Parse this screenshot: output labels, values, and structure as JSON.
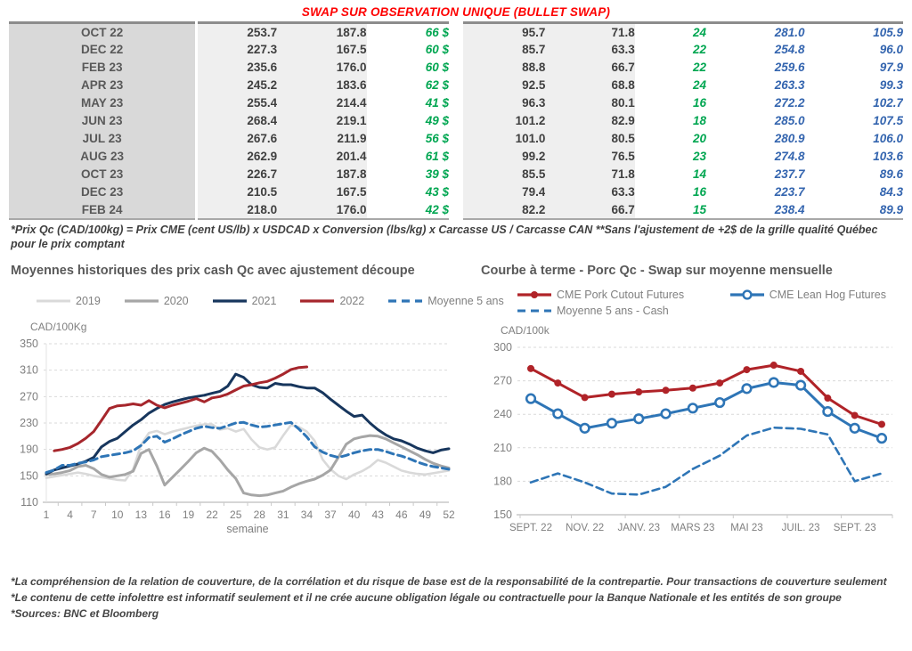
{
  "colors": {
    "title_red": "#fe0000",
    "green": "#00a651",
    "blue_italic": "#3465af",
    "month_bg": "#d9d9d9",
    "cell_bg": "#efefef",
    "series_2019": "#d9d9d9",
    "series_2020": "#a6a6a6",
    "series_2021": "#17365d",
    "series_2022": "#a6262c",
    "series_moyenne": "#2e75b6"
  },
  "table": {
    "title": "SWAP SUR OBSERVATION UNIQUE (BULLET SWAP)",
    "rows": [
      [
        "OCT 22",
        "253.7",
        "187.8",
        "66 $",
        "95.7",
        "71.8",
        "24",
        "281.0",
        "105.9"
      ],
      [
        "DEC 22",
        "227.3",
        "167.5",
        "60 $",
        "85.7",
        "63.3",
        "22",
        "254.8",
        "96.0"
      ],
      [
        "FEB 23",
        "235.6",
        "176.0",
        "60 $",
        "88.8",
        "66.7",
        "22",
        "259.6",
        "97.9"
      ],
      [
        "APR 23",
        "245.2",
        "183.6",
        "62 $",
        "92.5",
        "68.8",
        "24",
        "263.3",
        "99.3"
      ],
      [
        "MAY 23",
        "255.4",
        "214.4",
        "41 $",
        "96.3",
        "80.1",
        "16",
        "272.2",
        "102.7"
      ],
      [
        "JUN 23",
        "268.4",
        "219.1",
        "49 $",
        "101.2",
        "82.9",
        "18",
        "285.0",
        "107.5"
      ],
      [
        "JUL 23",
        "267.6",
        "211.9",
        "56 $",
        "101.0",
        "80.5",
        "20",
        "280.9",
        "106.0"
      ],
      [
        "AUG 23",
        "262.9",
        "201.4",
        "61 $",
        "99.2",
        "76.5",
        "23",
        "274.8",
        "103.6"
      ],
      [
        "OCT 23",
        "226.7",
        "187.8",
        "39 $",
        "85.5",
        "71.8",
        "14",
        "237.7",
        "89.6"
      ],
      [
        "DEC 23",
        "210.5",
        "167.5",
        "43 $",
        "79.4",
        "63.3",
        "16",
        "223.7",
        "84.3"
      ],
      [
        "FEB 24",
        "218.0",
        "176.0",
        "42 $",
        "82.2",
        "66.7",
        "15",
        "238.4",
        "89.9"
      ]
    ],
    "footnote": "*Prix Qc (CAD/100kg) = Prix CME (cent US/lb) x USDCAD x Conversion (lbs/kg) x Carcasse US / Carcasse CAN **Sans l'ajustement de +2$ de la grille qualité Québec pour le prix comptant"
  },
  "chart_data": [
    {
      "type": "line",
      "title": "Moyennes historiques des prix cash Qc avec ajustement découpe",
      "unit_label": "CAD/100Kg",
      "xlabel": "semaine",
      "ylim": [
        110,
        350
      ],
      "yticks": [
        110,
        150,
        190,
        230,
        270,
        310,
        350
      ],
      "xticks": [
        1,
        4,
        7,
        10,
        13,
        16,
        19,
        22,
        25,
        28,
        31,
        34,
        37,
        40,
        43,
        46,
        49,
        52
      ],
      "x_range": [
        1,
        52
      ],
      "grid": "dashed",
      "legend_position": "top",
      "series": [
        {
          "name": "2019",
          "color": "#d9d9d9",
          "width": 2.6,
          "values": [
            147,
            149,
            151,
            153,
            155,
            153,
            150,
            148,
            146,
            144,
            143,
            160,
            197,
            215,
            218,
            213,
            217,
            220,
            223,
            226,
            228,
            228,
            220,
            222,
            217,
            221,
            205,
            193,
            190,
            193,
            211,
            227,
            224,
            217,
            203,
            175,
            160,
            150,
            145,
            152,
            157,
            164,
            174,
            170,
            164,
            158,
            155,
            153,
            152,
            154,
            156,
            158
          ]
        },
        {
          "name": "2020",
          "color": "#a6a6a6",
          "width": 3,
          "values": [
            152,
            153,
            155,
            158,
            164,
            166,
            161,
            152,
            148,
            150,
            152,
            157,
            184,
            190,
            165,
            136,
            148,
            160,
            172,
            185,
            192,
            187,
            174,
            159,
            146,
            124,
            121,
            120,
            121,
            124,
            127,
            133,
            138,
            142,
            145,
            151,
            159,
            178,
            198,
            206,
            209,
            211,
            210,
            206,
            200,
            194,
            188,
            182,
            175,
            169,
            165,
            162
          ]
        },
        {
          "name": "2021",
          "color": "#17365d",
          "width": 3,
          "values": [
            153,
            159,
            162,
            165,
            168,
            172,
            178,
            194,
            202,
            207,
            217,
            227,
            235,
            245,
            252,
            258,
            262,
            265,
            268,
            270,
            272,
            275,
            278,
            286,
            304,
            299,
            288,
            284,
            283,
            290,
            288,
            288,
            285,
            283,
            283,
            276,
            266,
            257,
            248,
            240,
            242,
            230,
            220,
            212,
            206,
            203,
            198,
            192,
            188,
            185,
            189,
            191
          ]
        },
        {
          "name": "2022",
          "color": "#a6262c",
          "width": 3,
          "values": [
            null,
            188,
            190,
            193,
            199,
            207,
            217,
            234,
            252,
            256,
            257,
            259,
            257,
            264,
            257,
            253,
            257,
            260,
            263,
            267,
            262,
            268,
            270,
            274,
            280,
            286,
            288,
            291,
            293,
            298,
            304,
            311,
            314,
            315,
            null,
            null,
            null,
            null,
            null,
            null,
            null,
            null,
            null,
            null,
            null,
            null,
            null,
            null,
            null,
            null,
            null,
            null
          ]
        },
        {
          "name": "Moyenne 5 ans",
          "color": "#2e75b6",
          "width": 3,
          "dash": "8 5",
          "values": [
            155,
            159,
            166,
            166,
            169,
            171,
            174,
            179,
            181,
            183,
            185,
            188,
            196,
            208,
            210,
            201,
            206,
            212,
            217,
            222,
            225,
            223,
            222,
            226,
            230,
            231,
            227,
            224,
            225,
            227,
            229,
            231,
            221,
            209,
            194,
            186,
            181,
            178,
            181,
            185,
            188,
            190,
            190,
            187,
            183,
            180,
            176,
            171,
            167,
            164,
            162,
            160
          ]
        }
      ]
    },
    {
      "type": "line",
      "title": "Courbe à terme - Porc Qc - Swap sur moyenne mensuelle",
      "unit_label": "CAD/100k",
      "ylim": [
        150,
        300
      ],
      "yticks": [
        150,
        180,
        210,
        240,
        270,
        300
      ],
      "x_tick_labels": [
        "SEPT. 22",
        "NOV. 22",
        "JANV. 23",
        "MARS 23",
        "MAI 23",
        "JUIL. 23",
        "SEPT. 23"
      ],
      "n_points": 14,
      "grid": "dashed",
      "legend_position": "top",
      "series": [
        {
          "name": "CME Pork Cutout Futures",
          "color": "#b02328",
          "width": 3,
          "marker": "filled",
          "values": [
            281,
            268,
            255,
            258,
            260,
            261.5,
            263.5,
            268,
            280,
            284,
            278.5,
            254.5,
            239,
            231
          ]
        },
        {
          "name": "CME Lean Hog Futures",
          "color": "#2e75b6",
          "width": 3,
          "marker": "open",
          "values": [
            254,
            240.5,
            227.5,
            232,
            236,
            240.5,
            245.5,
            250.5,
            263,
            268.5,
            266,
            242.5,
            227.5,
            218.5
          ]
        },
        {
          "name": "Moyenne 5 ans - Cash",
          "color": "#2e75b6",
          "width": 2.6,
          "dash": "8 5",
          "values": [
            179,
            187,
            179,
            169,
            168,
            175,
            191,
            203,
            221,
            228,
            227,
            222,
            180,
            187
          ]
        }
      ]
    }
  ],
  "footer": {
    "lines": [
      "*La compréhension de la relation de couverture, de la corrélation et du risque de base est de la responsabilité de la contrepartie. Pour transactions de couverture seulement",
      "*Le contenu de cette infolettre est informatif seulement et il ne crée aucune obligation légale ou contractuelle pour la Banque Nationale et les entités de son groupe",
      "*Sources: BNC et Bloomberg"
    ]
  }
}
